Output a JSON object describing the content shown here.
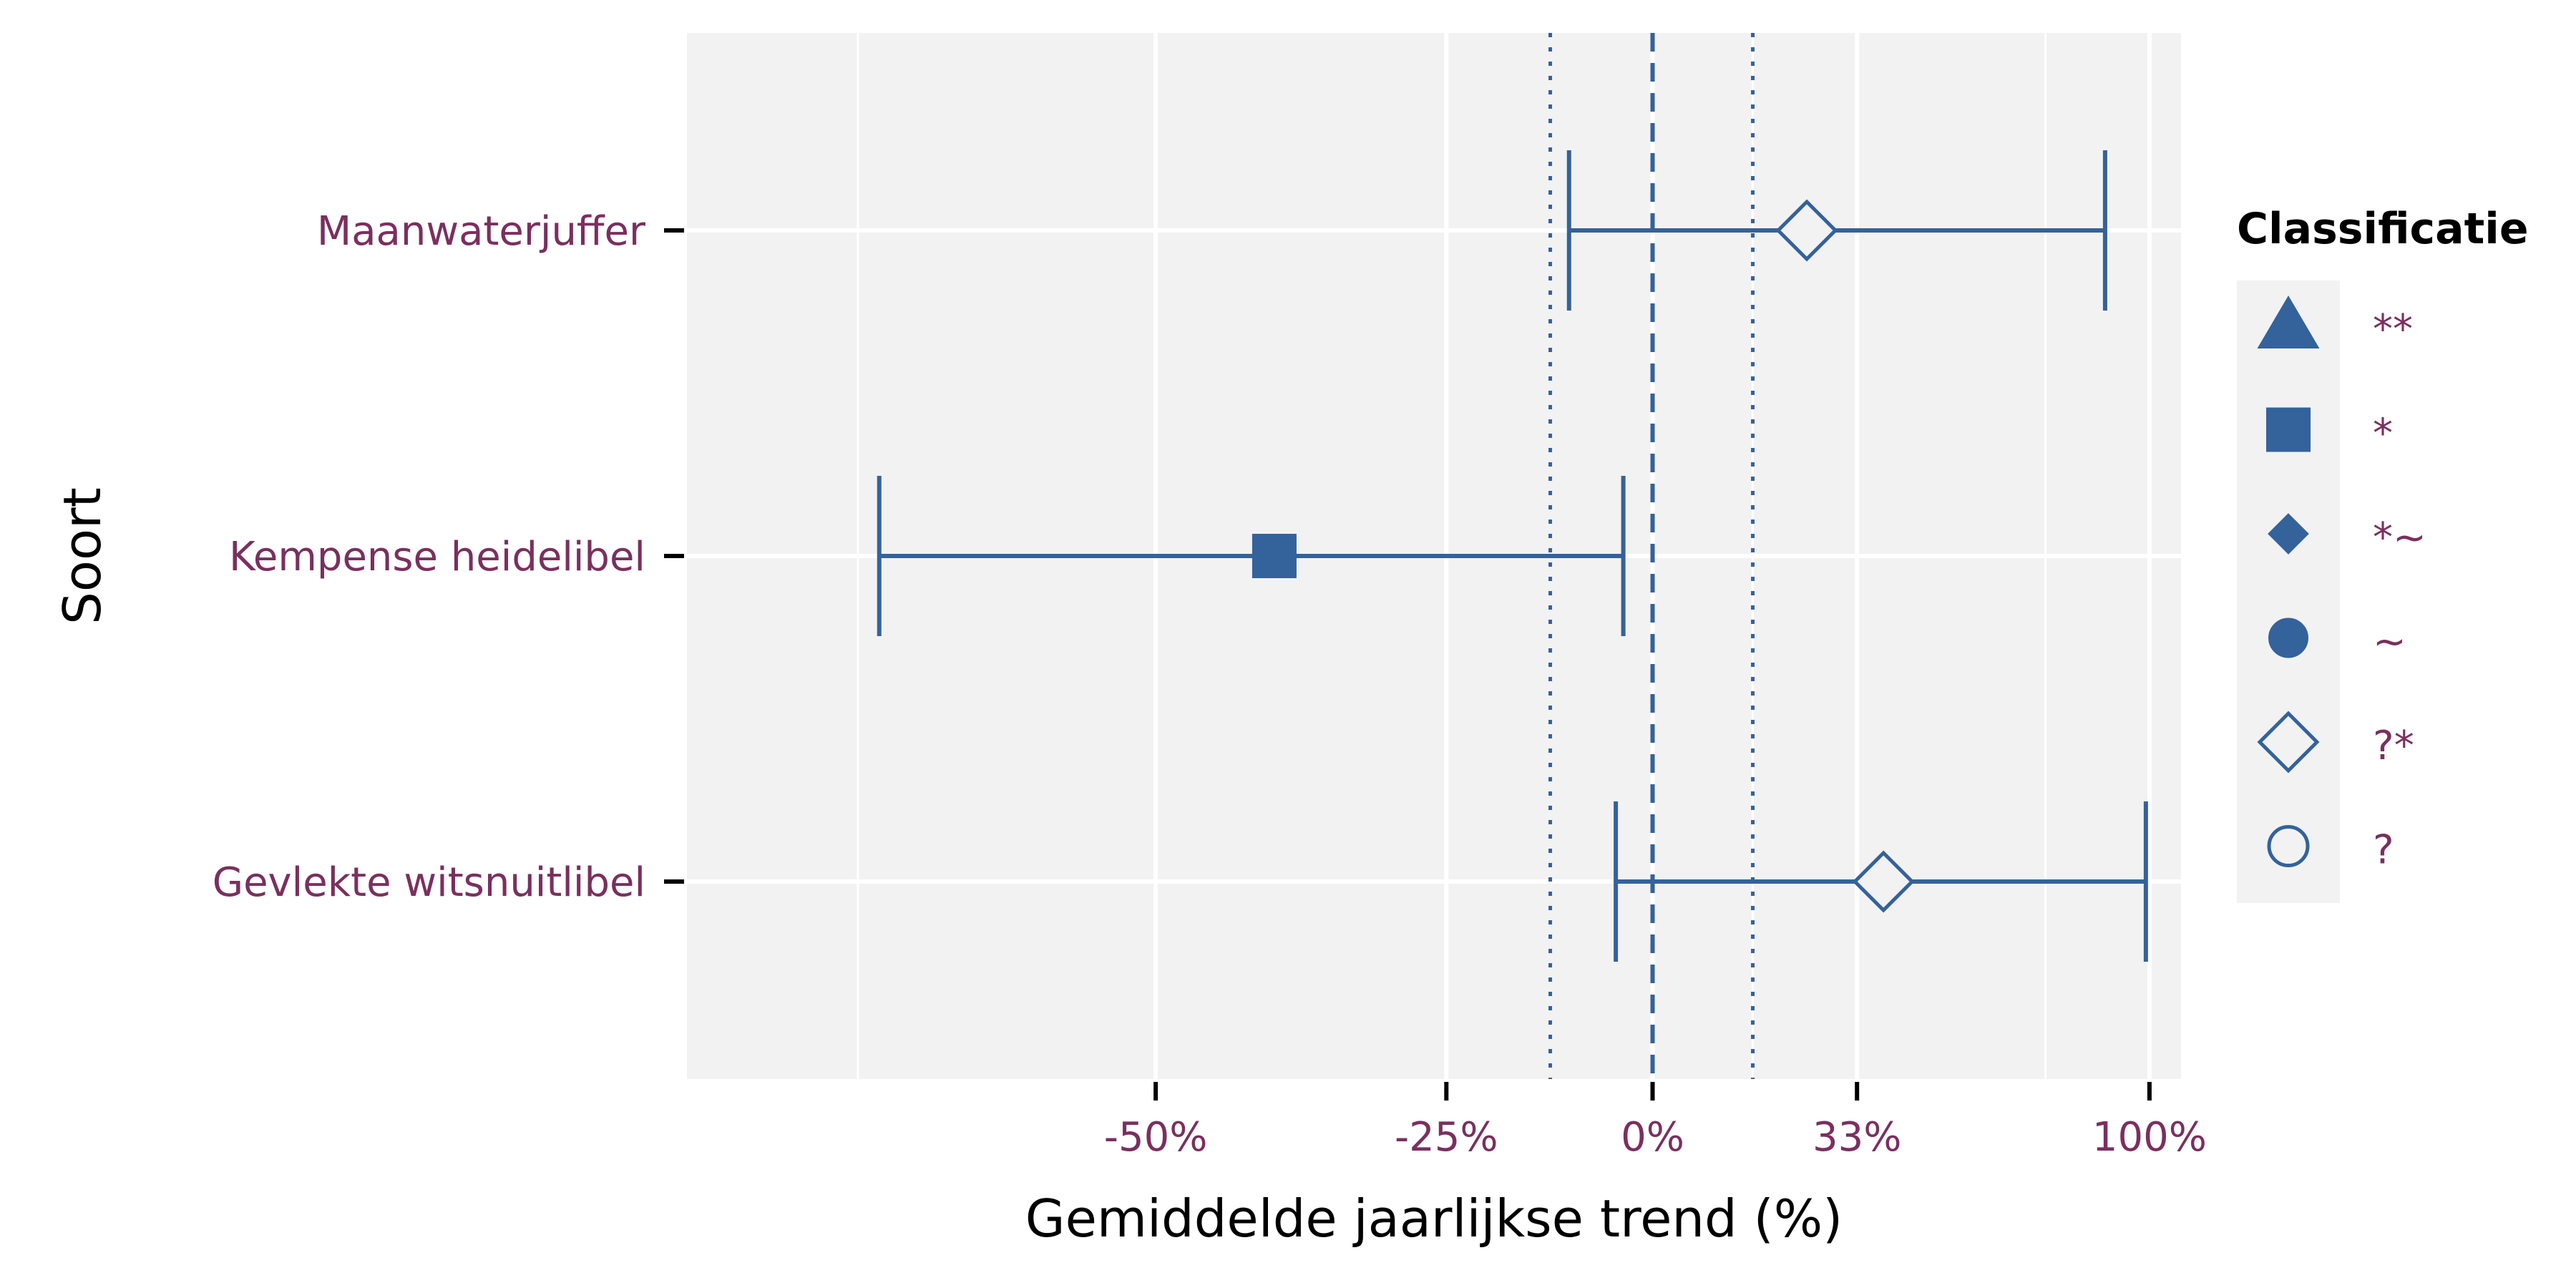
{
  "chart_data": {
    "type": "errorbar",
    "xlabel": "Gemiddelde jaarlijkse trend (%)",
    "ylabel": "Soort",
    "x_scale": "log(1 + trend)",
    "xlim": [
      -74,
      109
    ],
    "x_ticks": [
      {
        "value": -50,
        "label": "-50%"
      },
      {
        "value": -25,
        "label": "-25%"
      },
      {
        "value": 0,
        "label": "0%"
      },
      {
        "value": 33,
        "label": "33%"
      },
      {
        "value": 100,
        "label": "100%"
      }
    ],
    "x_minor_gridlines": [
      -67,
      15,
      73
    ],
    "reference_lines": [
      {
        "value": 0,
        "style": "dashed"
      },
      {
        "value": -13.3,
        "style": "dotted"
      },
      {
        "value": 15,
        "style": "dotted"
      }
    ],
    "categories": [
      "Maanwaterjuffer",
      "Kempense heidelibel",
      "Gevlekte witsnuitlibel"
    ],
    "points": [
      {
        "species": "Maanwaterjuffer",
        "estimate": 24,
        "lower": -11,
        "upper": 88,
        "classification": "?*"
      },
      {
        "species": "Kempense heidelibel",
        "estimate": -41,
        "lower": -66,
        "upper": -4,
        "classification": "*"
      },
      {
        "species": "Gevlekte witsnuitlibel",
        "estimate": 38,
        "lower": -5,
        "upper": 99,
        "classification": "?*"
      }
    ],
    "legend": {
      "title": "Classificatie",
      "placement": "right",
      "items": [
        {
          "label": "**",
          "shape": "triangle-filled"
        },
        {
          "label": "*",
          "shape": "square-filled"
        },
        {
          "label": "*~",
          "shape": "diamond-small-filled"
        },
        {
          "label": "~",
          "shape": "circle-filled"
        },
        {
          "label": "?*",
          "shape": "diamond-open"
        },
        {
          "label": "?",
          "shape": "circle-open"
        }
      ]
    },
    "grid": true,
    "colors": {
      "series": "#34629b",
      "label_text": "#7b2f5e",
      "panel_bg": "#f2f2f2",
      "grid": "#ffffff"
    }
  }
}
